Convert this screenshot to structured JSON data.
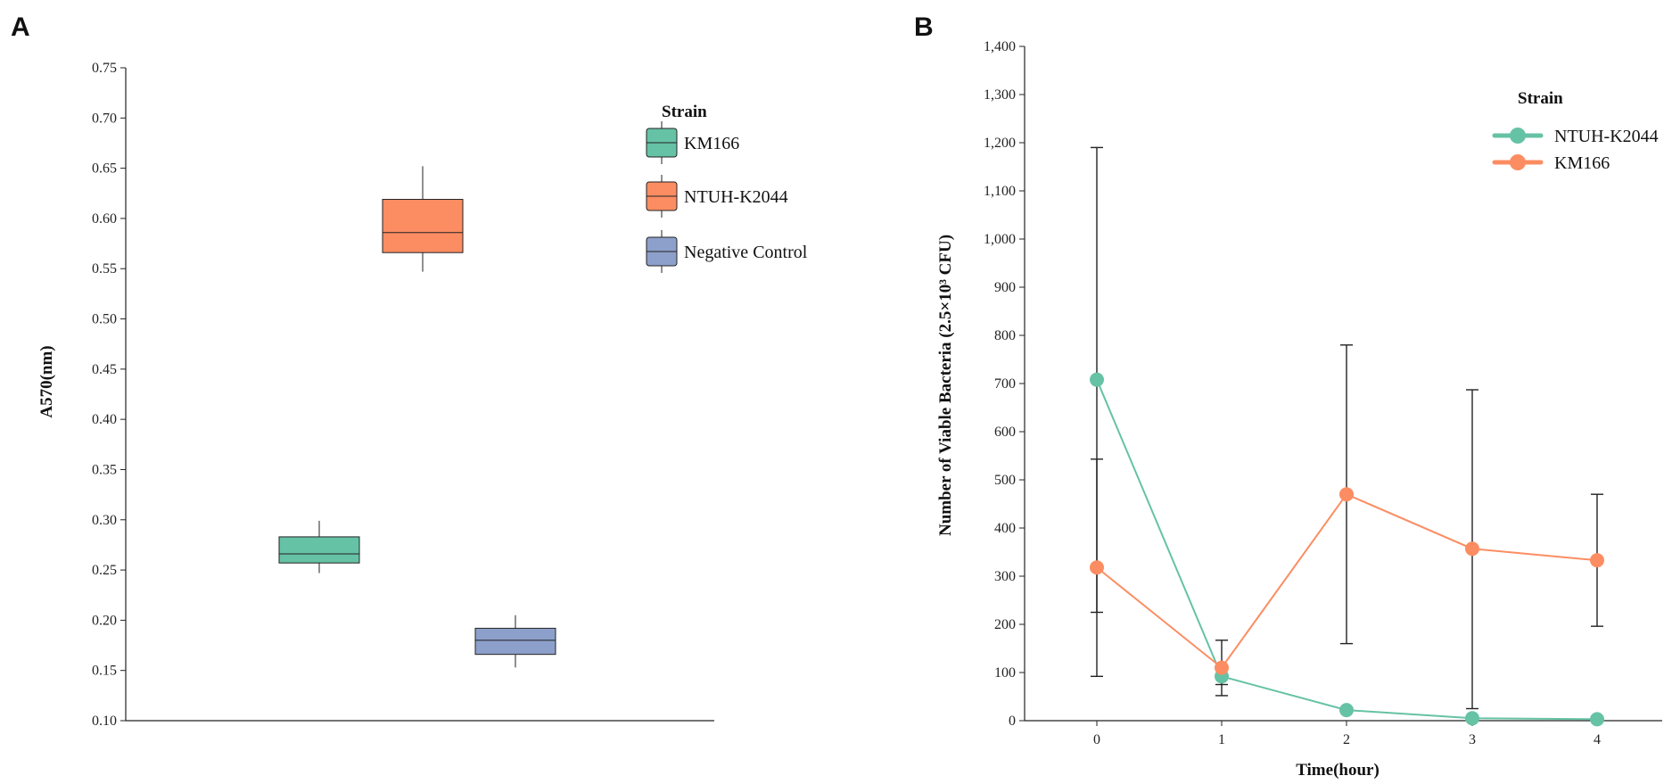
{
  "panels": {
    "a_label": "A",
    "b_label": "B"
  },
  "colors": {
    "teal": "#66c2a5",
    "orange": "#fc8d62",
    "blue": "#8da0cb",
    "ink": "#222222"
  },
  "chart_data": [
    {
      "type": "box",
      "panel": "A",
      "title": "",
      "xlabel": "",
      "ylabel": "A570(nm)",
      "ylim": [
        0.1,
        0.75
      ],
      "yticks": [
        "0.10",
        "0.15",
        "0.20",
        "0.25",
        "0.30",
        "0.35",
        "0.40",
        "0.45",
        "0.50",
        "0.55",
        "0.60",
        "0.65",
        "0.70",
        "0.75"
      ],
      "legend_title": "Strain",
      "legend_position": "top-right",
      "series": [
        {
          "name": "KM166",
          "color": "#66c2a5",
          "min": 0.247,
          "q1": 0.257,
          "median": 0.266,
          "q3": 0.283,
          "max": 0.299
        },
        {
          "name": "NTUH-K2044",
          "color": "#fc8d62",
          "min": 0.547,
          "q1": 0.566,
          "median": 0.586,
          "q3": 0.619,
          "max": 0.652
        },
        {
          "name": "Negative Control",
          "color": "#8da0cb",
          "min": 0.153,
          "q1": 0.166,
          "median": 0.18,
          "q3": 0.192,
          "max": 0.205
        }
      ]
    },
    {
      "type": "line",
      "panel": "B",
      "title": "",
      "xlabel": "Time(hour)",
      "ylabel": "Number of Viable Bacteria (2.5×10³ CFU)",
      "x": [
        0,
        1,
        2,
        3,
        4
      ],
      "xticks": [
        "0",
        "1",
        "2",
        "3",
        "4"
      ],
      "ylim": [
        0,
        1400
      ],
      "yticks": [
        "0",
        "100",
        "200",
        "300",
        "400",
        "500",
        "600",
        "700",
        "800",
        "900",
        "1,000",
        "1,100",
        "1,200",
        "1,300",
        "1,400"
      ],
      "legend_title": "Strain",
      "legend_position": "top-right",
      "series": [
        {
          "name": "NTUH-K2044",
          "color": "#66c2a5",
          "values": [
            708,
            92,
            22,
            5,
            3
          ],
          "err_low": [
            225,
            75,
            0,
            0,
            0
          ],
          "err_high": [
            1190,
            110,
            0,
            0,
            0
          ]
        },
        {
          "name": "KM166",
          "color": "#fc8d62",
          "values": [
            318,
            110,
            470,
            357,
            333
          ],
          "err_low": [
            92,
            52,
            160,
            25,
            196
          ],
          "err_high": [
            543,
            167,
            780,
            687,
            470
          ]
        }
      ]
    }
  ]
}
